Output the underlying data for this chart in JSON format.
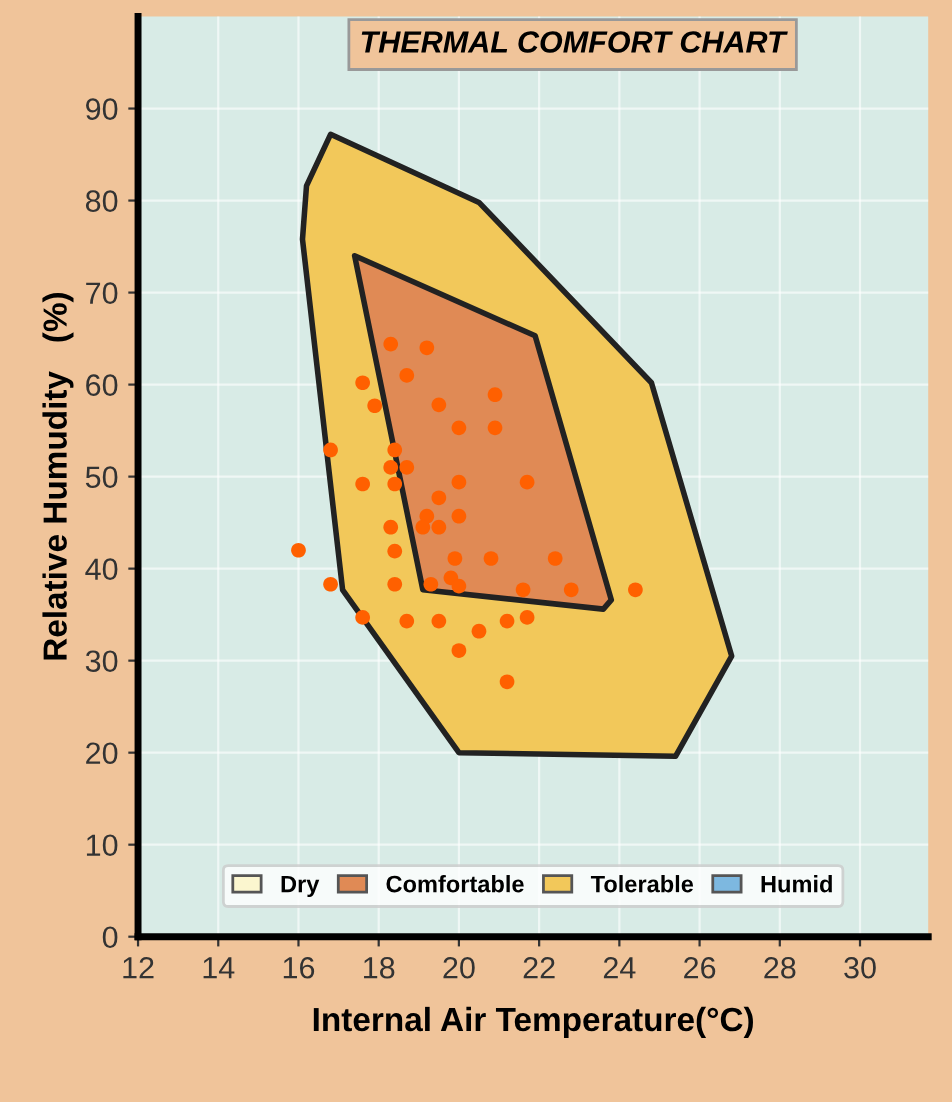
{
  "chart_data": {
    "type": "scatter",
    "title": "THERMAL COMFORT CHART",
    "xlabel": "Internal Air Temperature(°C)",
    "ylabel": "Relative Humudity   (%)",
    "annotations": [
      "Dry",
      "Humid"
    ],
    "series": [
      {
        "type": "area",
        "name": "Tolerable",
        "color": "#f2c85a",
        "x": [
          16.8,
          20.5,
          24.8,
          26.8,
          25.4,
          20.0,
          17.1,
          16.1,
          16.2
        ],
        "values": [
          87.2,
          79.8,
          60.2,
          30.5,
          19.6,
          20.0,
          37.7,
          75.8,
          81.6
        ]
      },
      {
        "type": "area",
        "name": "Comfortable",
        "color": "#e08a55",
        "x": [
          17.4,
          21.9,
          23.8,
          23.6,
          19.1
        ],
        "values": [
          74.0,
          65.3,
          36.6,
          35.6,
          37.7
        ]
      },
      {
        "color": "#ff6000",
        "marker": "circle",
        "x": [
          18.3,
          19.2,
          18.7,
          17.6,
          17.9,
          19.5,
          20.9,
          20.0,
          20.9,
          16.8,
          18.4,
          18.3,
          18.7,
          18.4,
          17.6,
          20.0,
          21.7,
          19.5,
          19.2,
          19.1,
          19.5,
          20.0,
          18.3,
          18.4,
          16.0,
          19.9,
          20.8,
          22.4,
          16.8,
          18.4,
          19.3,
          19.8,
          20.0,
          21.6,
          22.8,
          24.4,
          17.6,
          18.7,
          19.5,
          20.5,
          21.2,
          21.7,
          20.0,
          21.2
        ],
        "values": [
          64.4,
          64.0,
          61.0,
          60.2,
          57.7,
          57.8,
          58.9,
          55.3,
          55.3,
          52.9,
          52.9,
          51.0,
          51.0,
          49.2,
          49.2,
          49.4,
          49.4,
          47.7,
          45.7,
          44.5,
          44.5,
          45.7,
          44.5,
          41.9,
          42.0,
          41.1,
          41.1,
          41.1,
          38.3,
          38.3,
          38.3,
          39.0,
          38.1,
          37.7,
          37.7,
          37.7,
          34.7,
          34.3,
          34.3,
          33.2,
          34.3,
          34.7,
          31.1,
          27.7
        ]
      }
    ],
    "xlim": [
      12,
      31.7
    ],
    "xticks": [
      12,
      14,
      16,
      18,
      20,
      22,
      24,
      26,
      28,
      30
    ],
    "ylim": [
      0,
      100
    ],
    "yticks": [
      0,
      10,
      20,
      30,
      40,
      50,
      60,
      70,
      80,
      90
    ],
    "grid": true,
    "legend": "bottom"
  }
}
